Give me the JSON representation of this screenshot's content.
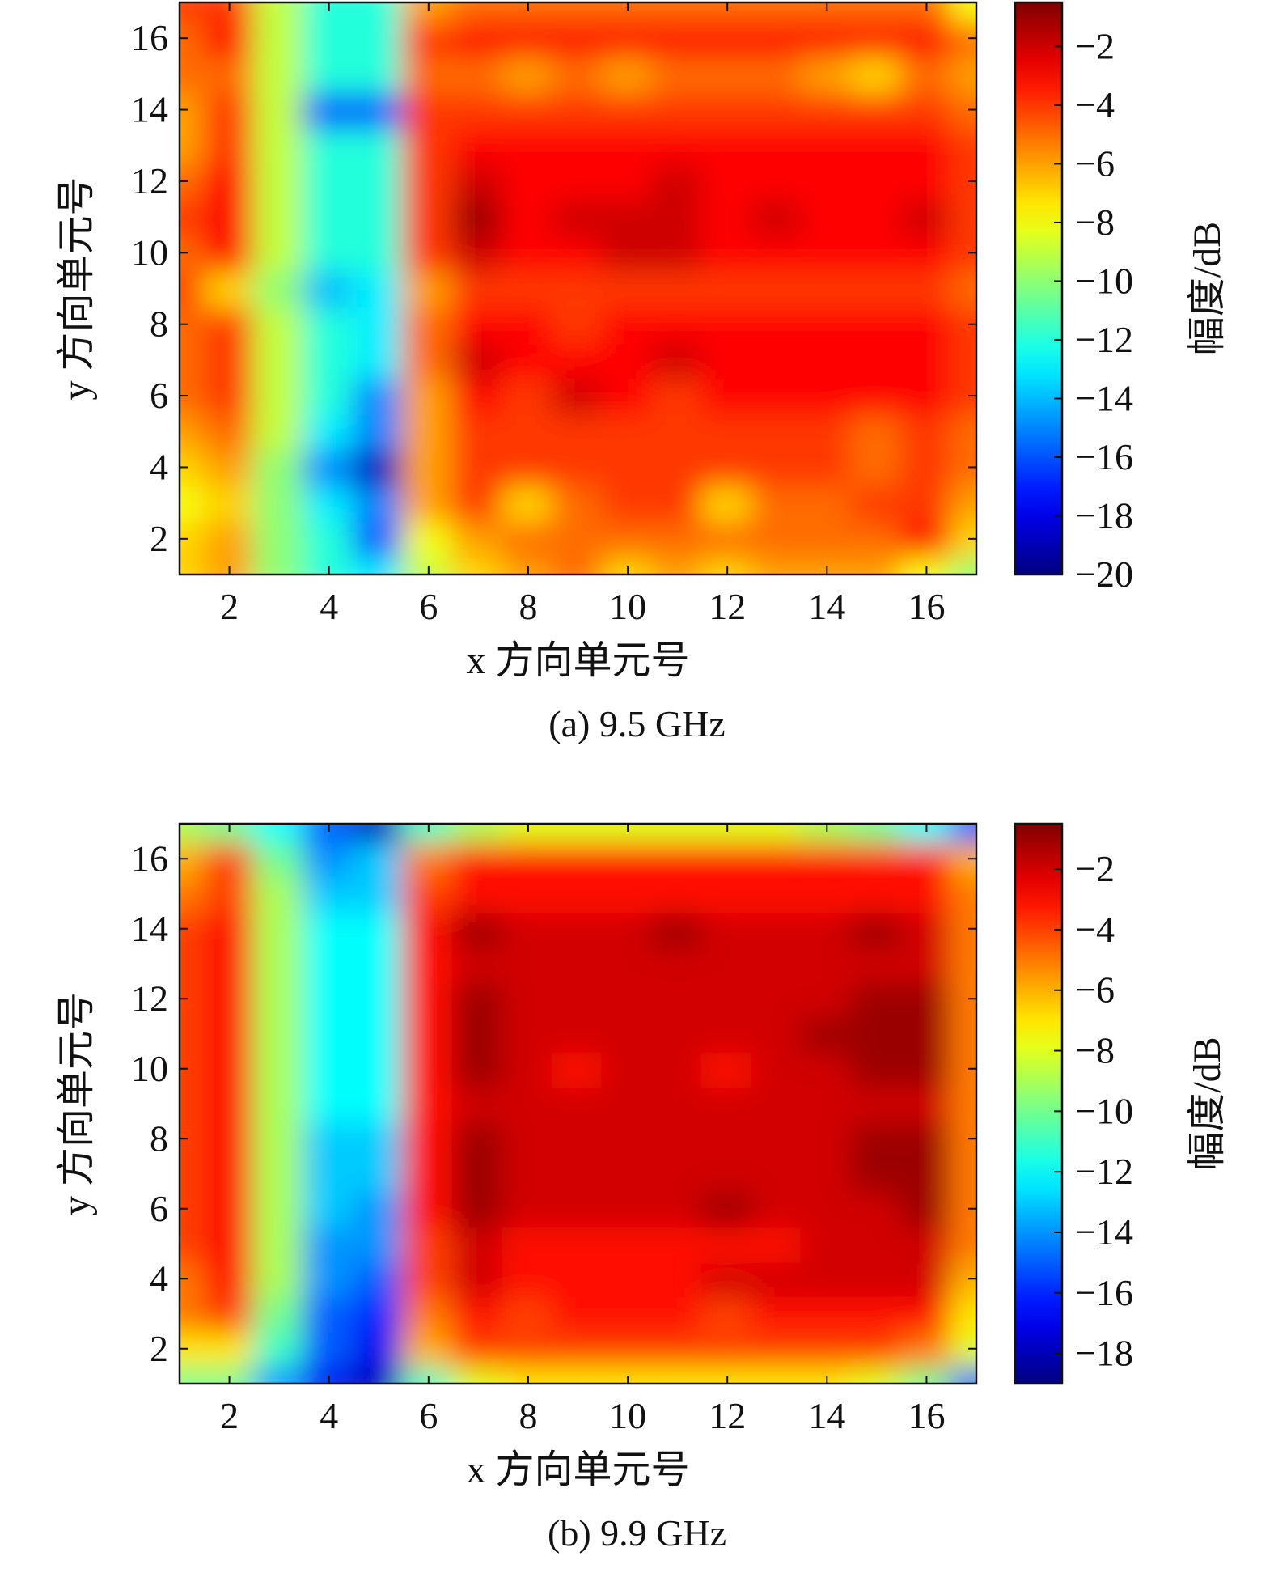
{
  "chart_data": [
    {
      "type": "heatmap",
      "caption": "(a) 9.5 GHz",
      "xlabel": "x 方向单元号",
      "ylabel": "y 方向单元号",
      "colorbar_label": "幅度/dB",
      "xlim": [
        1,
        17
      ],
      "ylim": [
        1,
        17
      ],
      "xticks": [
        "2",
        "4",
        "6",
        "8",
        "10",
        "12",
        "14",
        "16"
      ],
      "yticks": [
        "2",
        "4",
        "6",
        "8",
        "10",
        "12",
        "14",
        "16"
      ],
      "clim": [
        -20,
        -0.5
      ],
      "colorbar_ticks": [
        "−2",
        "−4",
        "−6",
        "−8",
        "−10",
        "−12",
        "−14",
        "−16",
        "−18",
        "−20"
      ],
      "colormap": "jet",
      "values": [
        [
          -7,
          -6,
          -10,
          -12,
          -13,
          -9,
          -7,
          -6,
          -5,
          -7,
          -6,
          -7,
          -6,
          -6,
          -6,
          -8,
          -10
        ],
        [
          -7,
          -6,
          -10,
          -12,
          -16,
          -8,
          -6,
          -5,
          -5,
          -5,
          -5,
          -5,
          -5,
          -5,
          -5,
          -3,
          -7
        ],
        [
          -8,
          -7,
          -10,
          -13,
          -15,
          -6,
          -4,
          -7,
          -5,
          -4,
          -4,
          -7,
          -5,
          -5,
          -4,
          -4,
          -6
        ],
        [
          -7,
          -6,
          -10,
          -15,
          -19,
          -6,
          -4,
          -4,
          -4,
          -4,
          -4,
          -4,
          -4,
          -4,
          -5,
          -4,
          -5
        ],
        [
          -6,
          -5,
          -9,
          -13,
          -15,
          -6,
          -4,
          -4,
          -4,
          -4,
          -4,
          -4,
          -4,
          -4,
          -5,
          -4,
          -5
        ],
        [
          -5,
          -4,
          -9,
          -12,
          -15,
          -6,
          -3,
          -4,
          -2,
          -3,
          -4,
          -3,
          -3,
          -3,
          -3,
          -3,
          -4
        ],
        [
          -5,
          -4,
          -9,
          -12,
          -13,
          -5,
          -2,
          -3,
          -3,
          -3,
          -2,
          -3,
          -3,
          -3,
          -3,
          -3,
          -4
        ],
        [
          -5,
          -4,
          -9,
          -12,
          -13,
          -5,
          -3,
          -3,
          -4,
          -3,
          -3,
          -3,
          -3,
          -3,
          -3,
          -3,
          -4
        ],
        [
          -4,
          -7,
          -10,
          -14,
          -13,
          -6,
          -4,
          -4,
          -4,
          -4,
          -4,
          -4,
          -4,
          -4,
          -4,
          -4,
          -5
        ],
        [
          -5,
          -3,
          -9,
          -12,
          -12,
          -4,
          -2,
          -3,
          -3,
          -2,
          -2,
          -3,
          -3,
          -3,
          -3,
          -3,
          -4
        ],
        [
          -4,
          -3,
          -9,
          -12,
          -12,
          -4,
          -1,
          -3,
          -2,
          -2,
          -2,
          -3,
          -2,
          -3,
          -3,
          -2,
          -4
        ],
        [
          -5,
          -3,
          -9,
          -12,
          -12,
          -4,
          -2,
          -3,
          -3,
          -3,
          -2,
          -3,
          -3,
          -3,
          -3,
          -3,
          -4
        ],
        [
          -6,
          -4,
          -9,
          -12,
          -12,
          -4,
          -3,
          -3,
          -3,
          -3,
          -3,
          -3,
          -3,
          -3,
          -3,
          -3,
          -4
        ],
        [
          -6,
          -4,
          -9,
          -16,
          -16,
          -4,
          -4,
          -4,
          -4,
          -4,
          -4,
          -4,
          -4,
          -4,
          -4,
          -4,
          -5
        ],
        [
          -5,
          -5,
          -9,
          -12,
          -12,
          -5,
          -5,
          -6,
          -5,
          -6,
          -5,
          -5,
          -5,
          -6,
          -7,
          -5,
          -6
        ],
        [
          -5,
          -3,
          -9,
          -12,
          -12,
          -4,
          -3,
          -3,
          -3,
          -3,
          -3,
          -3,
          -3,
          -3,
          -3,
          -3,
          -5
        ],
        [
          -4,
          -4,
          -9,
          -12,
          -12,
          -6,
          -5,
          -5,
          -5,
          -5,
          -5,
          -5,
          -5,
          -5,
          -5,
          -5,
          -8
        ]
      ]
    },
    {
      "type": "heatmap",
      "caption": "(b) 9.9 GHz",
      "xlabel": "x 方向单元号",
      "ylabel": "y 方向单元号",
      "colorbar_label": "幅度/dB",
      "xlim": [
        1,
        17
      ],
      "ylim": [
        1,
        17
      ],
      "xticks": [
        "2",
        "4",
        "6",
        "8",
        "10",
        "12",
        "14",
        "16"
      ],
      "yticks": [
        "2",
        "4",
        "6",
        "8",
        "10",
        "12",
        "14",
        "16"
      ],
      "clim": [
        -19,
        -0.5
      ],
      "colorbar_ticks": [
        "−2",
        "−4",
        "−6",
        "−8",
        "−10",
        "−12",
        "−14",
        "−16",
        "−18"
      ],
      "colormap": "jet",
      "values": [
        [
          -10,
          -10,
          -14,
          -17,
          -18,
          -11,
          -8,
          -7,
          -7,
          -7,
          -7,
          -7,
          -7,
          -7,
          -8,
          -10,
          -15
        ],
        [
          -7,
          -7,
          -11,
          -15,
          -17,
          -6,
          -4,
          -4,
          -4,
          -4,
          -4,
          -4,
          -4,
          -4,
          -4,
          -5,
          -8
        ],
        [
          -5,
          -4,
          -10,
          -15,
          -16,
          -5,
          -3,
          -4,
          -3,
          -3,
          -3,
          -4,
          -3,
          -3,
          -3,
          -3,
          -7
        ],
        [
          -5,
          -3,
          -9,
          -14,
          -15,
          -4,
          -2,
          -3,
          -3,
          -3,
          -3,
          -2,
          -2,
          -2,
          -2,
          -2,
          -6
        ],
        [
          -4,
          -3,
          -9,
          -14,
          -14,
          -4,
          -2,
          -3,
          -3,
          -3,
          -3,
          -3,
          -3,
          -2,
          -2,
          -2,
          -5
        ],
        [
          -4,
          -3,
          -9,
          -13,
          -14,
          -3,
          -1,
          -2,
          -2,
          -2,
          -2,
          -1,
          -2,
          -2,
          -2,
          -1,
          -5
        ],
        [
          -4,
          -3,
          -9,
          -13,
          -13,
          -3,
          -1,
          -2,
          -2,
          -2,
          -2,
          -2,
          -2,
          -2,
          -1,
          -1,
          -5
        ],
        [
          -4,
          -3,
          -9,
          -13,
          -13,
          -3,
          -1,
          -2,
          -2,
          -2,
          -2,
          -2,
          -2,
          -2,
          -1,
          -1,
          -5
        ],
        [
          -4,
          -3,
          -9,
          -12,
          -12,
          -3,
          -2,
          -2,
          -2,
          -2,
          -2,
          -2,
          -2,
          -2,
          -2,
          -2,
          -5
        ],
        [
          -4,
          -3,
          -9,
          -12,
          -12,
          -3,
          -1,
          -2,
          -3,
          -2,
          -2,
          -3,
          -2,
          -2,
          -1,
          -1,
          -5
        ],
        [
          -4,
          -3,
          -9,
          -12,
          -12,
          -3,
          -1,
          -2,
          -2,
          -2,
          -2,
          -2,
          -2,
          -1,
          -1,
          -1,
          -5
        ],
        [
          -4,
          -3,
          -9,
          -12,
          -12,
          -3,
          -1,
          -2,
          -2,
          -2,
          -2,
          -2,
          -2,
          -2,
          -1,
          -1,
          -5
        ],
        [
          -4,
          -3,
          -9,
          -12,
          -12,
          -3,
          -2,
          -2,
          -2,
          -2,
          -2,
          -2,
          -2,
          -2,
          -2,
          -2,
          -5
        ],
        [
          -4,
          -3,
          -9,
          -12,
          -12,
          -3,
          -1,
          -2,
          -2,
          -2,
          -1,
          -2,
          -2,
          -2,
          -1,
          -2,
          -5
        ],
        [
          -5,
          -4,
          -9,
          -13,
          -13,
          -4,
          -3,
          -3,
          -3,
          -3,
          -3,
          -3,
          -3,
          -3,
          -3,
          -3,
          -5
        ],
        [
          -6,
          -4,
          -10,
          -14,
          -13,
          -5,
          -3,
          -3,
          -3,
          -3,
          -3,
          -3,
          -3,
          -3,
          -3,
          -3,
          -6
        ],
        [
          -9,
          -10,
          -12,
          -15,
          -18,
          -11,
          -9,
          -8,
          -8,
          -8,
          -8,
          -8,
          -8,
          -9,
          -10,
          -12,
          -15
        ]
      ]
    }
  ]
}
